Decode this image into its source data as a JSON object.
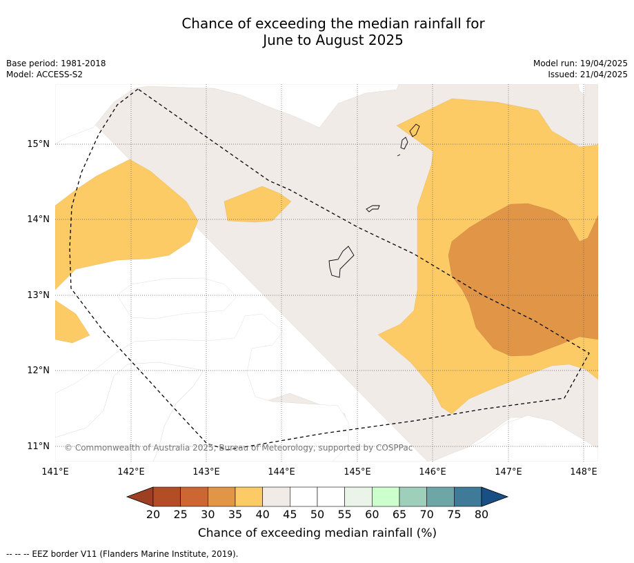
{
  "title_line1": "Chance of exceeding the median rainfall for",
  "title_line2": "June to August 2025",
  "meta_left": {
    "base_period": "Base period: 1981-2018",
    "model": "Model: ACCESS-S2"
  },
  "meta_right": {
    "model_run": "Model run: 19/04/2025",
    "issued": "Issued: 21/04/2025"
  },
  "map": {
    "lon_labels": [
      "141°E",
      "142°E",
      "143°E",
      "144°E",
      "145°E",
      "146°E",
      "147°E",
      "148°E"
    ],
    "lat_labels": [
      "15°N",
      "14°N",
      "13°N",
      "12°N",
      "11°N"
    ],
    "copyright": "© Commonwealth of Australia 2025, Bureau of Meteorology, supported by COSPPac"
  },
  "colorbar": {
    "ticks": [
      "20",
      "25",
      "30",
      "35",
      "40",
      "45",
      "50",
      "55",
      "60",
      "65",
      "70",
      "75",
      "80"
    ],
    "colors": [
      "#b34d26",
      "#cc6633",
      "#e09646",
      "#fdcb66",
      "#f0ebe6",
      "#ffffff",
      "#ffffff",
      "#eaf4e9",
      "#ccffcc",
      "#9dcfbb",
      "#6ea6a8",
      "#3f7a98"
    ],
    "under_color": "#9c3f22",
    "over_color": "#1a4f85",
    "label": "Chance of exceeding median rainfall (%)"
  },
  "footer": "--  --  -- EEZ border V11 (Flanders Marine Institute, 2019)."
}
